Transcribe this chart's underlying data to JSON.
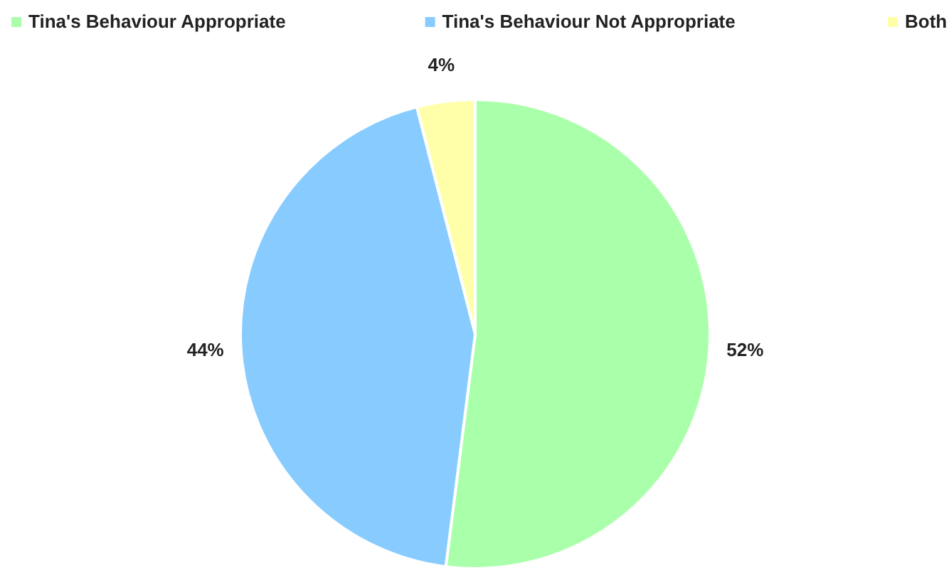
{
  "chart_data": {
    "type": "pie",
    "categories": [
      "Tina's Behaviour Appropriate",
      "Tina's Behaviour Not Appropriate",
      "Both"
    ],
    "values": [
      52,
      44,
      4
    ],
    "colors": [
      "#aaffaa",
      "#88ccff",
      "#ffffaa"
    ],
    "value_labels": [
      "52%",
      "44%",
      "4%"
    ],
    "legend": "top"
  }
}
